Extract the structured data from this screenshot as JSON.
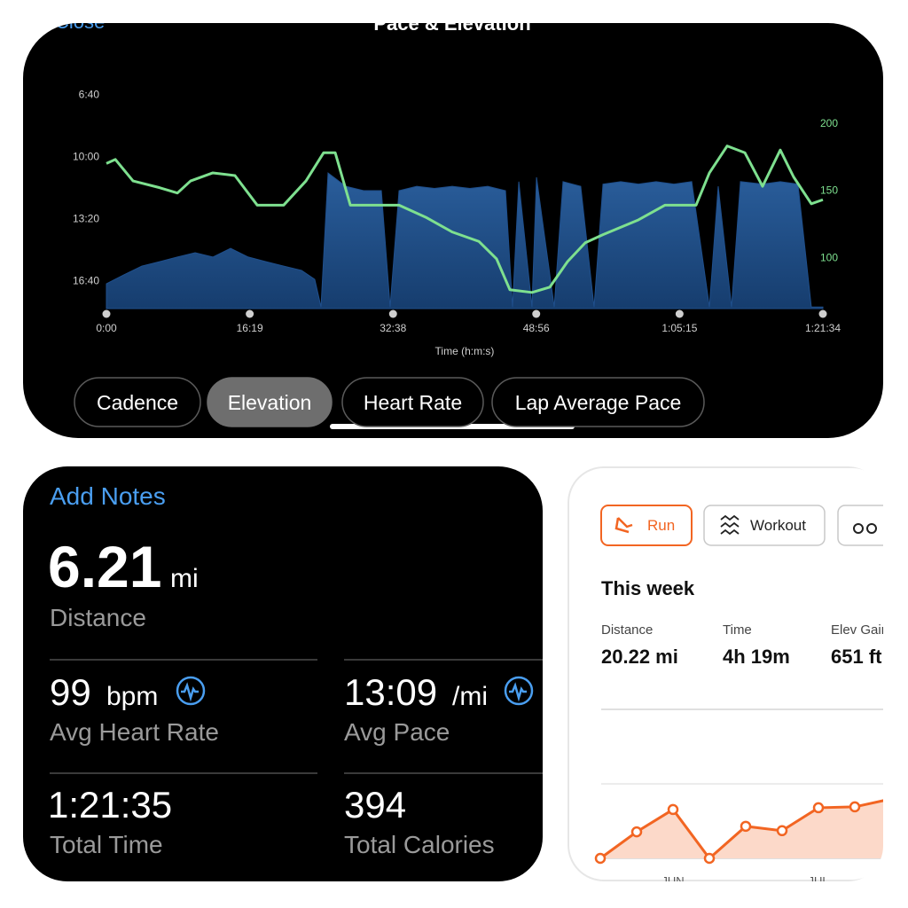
{
  "chart_data": [
    {
      "type": "area-line",
      "title": "Pace & Elevation",
      "close": "Close",
      "pace": {
        "x": [
          0,
          121,
          242,
          363,
          485,
          606,
          727,
          848,
          969,
          1090,
          1211,
          1333,
          1423,
          1466,
          1514,
          1635,
          1757,
          1878,
          1938,
          1999,
          2120,
          2241,
          2362,
          2483,
          2605,
          2726,
          2774,
          2817,
          2907,
          2938,
          3059,
          3119,
          3240,
          3331,
          3392,
          3513,
          3634,
          3755,
          3876,
          3998,
          4119,
          4179,
          4270,
          4331,
          4482,
          4603,
          4724,
          4815,
          4894
        ],
        "values": [
          1010,
          981,
          953,
          939,
          924,
          910,
          924,
          896,
          924,
          939,
          953,
          967,
          996,
          1085,
          653,
          696,
          710,
          710,
          1085,
          710,
          696,
          703,
          696,
          703,
          696,
          710,
          1085,
          681,
          1085,
          667,
          1085,
          681,
          696,
          1085,
          689,
          681,
          689,
          681,
          689,
          681,
          1085,
          696,
          1085,
          681,
          689,
          681,
          689,
          1085,
          1085
        ],
        "color": "#1f4f8c"
      },
      "elevation": {
        "x": [
          0,
          61,
          182,
          363,
          485,
          575,
          727,
          878,
          1030,
          1211,
          1363,
          1484,
          1563,
          1666,
          1999,
          2181,
          2362,
          2544,
          2665,
          2756,
          2907,
          3029,
          3150,
          3271,
          3392,
          3634,
          3816,
          4028,
          4119,
          4240,
          4361,
          4482,
          4603,
          4694,
          4815,
          4894
        ],
        "values": [
          170,
          173,
          157,
          152,
          148,
          157,
          163,
          161,
          139,
          139,
          157,
          178,
          178,
          139,
          139,
          130,
          119,
          112,
          99,
          76,
          74,
          78,
          97,
          111,
          117,
          128,
          139,
          139,
          163,
          183,
          178,
          153,
          180,
          160,
          140,
          143
        ],
        "color": "#7ee08f",
        "axis": "y2"
      },
      "xlabel": "Time (h:m:s)",
      "xlim": [
        0,
        4894
      ],
      "xticks": [
        {
          "value": 0,
          "label": "0:00"
        },
        {
          "value": 979,
          "label": "16:19"
        },
        {
          "value": 1958,
          "label": "32:38"
        },
        {
          "value": 2936,
          "label": "48:56"
        },
        {
          "value": 3915,
          "label": "1:05:15"
        },
        {
          "value": 4894,
          "label": "1:21:34"
        }
      ],
      "ylim": [
        1090,
        380
      ],
      "yticks": [
        {
          "value": 400,
          "label": "6:40"
        },
        {
          "value": 600,
          "label": "10:00"
        },
        {
          "value": 800,
          "label": "13:20"
        },
        {
          "value": 1000,
          "label": "16:40"
        }
      ],
      "y2lim": [
        62,
        226
      ],
      "y2ticks": [
        100,
        150,
        200
      ],
      "tabs": [
        "Cadence",
        "Elevation",
        "Heart Rate",
        "Lap Average Pace"
      ],
      "active_tab": 1
    },
    {
      "type": "line",
      "categories": [
        null,
        null,
        "JUN",
        null,
        null,
        null,
        "JUL",
        null,
        null
      ],
      "values": [
        0,
        9,
        16.6,
        0,
        10.9,
        9.4,
        17.2,
        17.5,
        20.2
      ],
      "color": "#f26522",
      "fill": "#fcd9c9",
      "ylim": [
        0,
        22
      ]
    }
  ],
  "stats": {
    "add_notes": "Add Notes",
    "distance": {
      "value": "6.21",
      "unit": "mi",
      "label": "Distance"
    },
    "heart_rate": {
      "value": "99",
      "unit": "bpm",
      "label": "Avg Heart Rate"
    },
    "pace": {
      "value": "13:09",
      "unit": "/mi",
      "label": "Avg Pace"
    },
    "time": {
      "value": "1:21:35",
      "label": "Total Time"
    },
    "calories": {
      "value": "394",
      "label": "Total Calories"
    }
  },
  "strava": {
    "tabs": [
      "Run",
      "Workout"
    ],
    "heading": "This week",
    "metrics": [
      {
        "label": "Distance",
        "value": "20.22 mi"
      },
      {
        "label": "Time",
        "value": "4h 19m"
      },
      {
        "label": "Elev Gain",
        "value": "651 ft"
      }
    ]
  }
}
